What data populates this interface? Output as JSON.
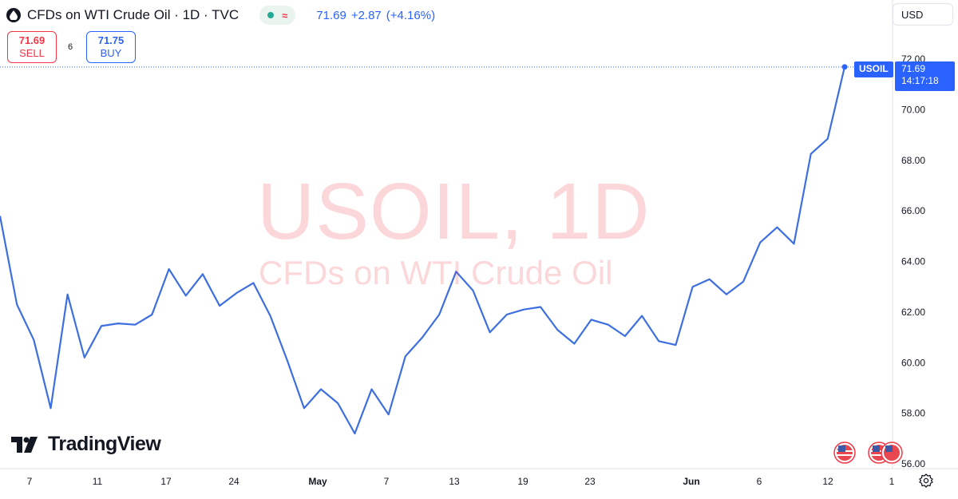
{
  "header": {
    "title": "CFDs on WTI Crude Oil · 1D · TVC",
    "last_price": "71.69",
    "change": "+2.87",
    "change_pct": "(+4.16%)"
  },
  "trade": {
    "sell_price": "71.69",
    "sell_label": "SELL",
    "spread": "6",
    "buy_price": "71.75",
    "buy_label": "BUY"
  },
  "currency": "USD",
  "watermark": {
    "symbol": "USOIL, 1D",
    "name": "CFDs on WTI Crude Oil"
  },
  "logo_text": "TradingView",
  "price_label": {
    "symbol": "USOIL",
    "price": "71.69",
    "countdown": "14:17:18"
  },
  "colors": {
    "line": "#3d6fe0",
    "accent": "#2962ff",
    "sell": "#f23645",
    "watermark": "#f23645"
  },
  "chart_data": {
    "type": "line",
    "series": [
      {
        "values": [
          65.8,
          62.3,
          60.9,
          58.2,
          62.7,
          60.2,
          61.45,
          61.55,
          61.5,
          61.9,
          63.7,
          62.65,
          63.5,
          62.25,
          62.75,
          63.15,
          61.85,
          60.1,
          58.2,
          58.95,
          58.4,
          57.2,
          58.95,
          57.95,
          60.25,
          61.0,
          61.9,
          63.6,
          62.85,
          61.2,
          61.9,
          62.1,
          62.2,
          61.3,
          60.75,
          61.7,
          61.5,
          61.05,
          61.85,
          60.85,
          60.7,
          63.0,
          63.3,
          62.7,
          63.2,
          64.75,
          65.35,
          64.7,
          68.25,
          68.85,
          71.69
        ]
      }
    ],
    "x_tick_labels": [
      "7",
      "11",
      "17",
      "24",
      "May",
      "7",
      "13",
      "19",
      "23",
      "Jun",
      "6",
      "12",
      "1"
    ],
    "y_tick_labels": [
      "56.00",
      "58.00",
      "60.00",
      "62.00",
      "64.00",
      "66.00",
      "68.00",
      "70.00",
      "72.00"
    ],
    "ylim": [
      56,
      72
    ],
    "grid": false,
    "last_value": 71.69
  }
}
